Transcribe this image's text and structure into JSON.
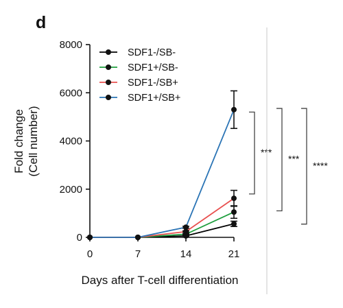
{
  "panel_label": "d",
  "colors": {
    "SDF1-/SB-": "#000000",
    "SDF1+/SB-": "#1e9e3e",
    "SDF1-/SB+": "#e8504f",
    "SDF1+/SB+": "#2a74b5",
    "axis": "#111111",
    "divider": "#c9c9c9"
  },
  "chart_data": {
    "type": "line",
    "title": "",
    "xlabel": "Days after T-cell differentiation",
    "ylabel": [
      "Fold change",
      "(Cell number)"
    ],
    "x": [
      0,
      7,
      14,
      21
    ],
    "xticks": [
      "0",
      "7",
      "14",
      "21"
    ],
    "xlim": [
      0,
      21
    ],
    "yticks": [
      "0",
      "2000",
      "4000",
      "6000",
      "8000"
    ],
    "ylim": [
      0,
      8000
    ],
    "legend_position": "top-left",
    "series": [
      {
        "name": "SDF1-/SB-",
        "values": [
          0,
          0,
          60,
          560
        ],
        "err": [
          0,
          0,
          15,
          110
        ]
      },
      {
        "name": "SDF1+/SB-",
        "values": [
          0,
          0,
          130,
          1050
        ],
        "err": [
          0,
          0,
          20,
          260
        ]
      },
      {
        "name": "SDF1-/SB+",
        "values": [
          0,
          0,
          240,
          1620
        ],
        "err": [
          0,
          0,
          30,
          330
        ]
      },
      {
        "name": "SDF1+/SB+",
        "values": [
          0,
          0,
          420,
          5300
        ],
        "err": [
          0,
          0,
          40,
          780
        ]
      }
    ],
    "significance": [
      {
        "label": "***",
        "range": [
          1800,
          5200
        ]
      },
      {
        "label": "***",
        "range": [
          1100,
          5350
        ]
      },
      {
        "label": "****",
        "range": [
          550,
          5350
        ]
      }
    ]
  }
}
